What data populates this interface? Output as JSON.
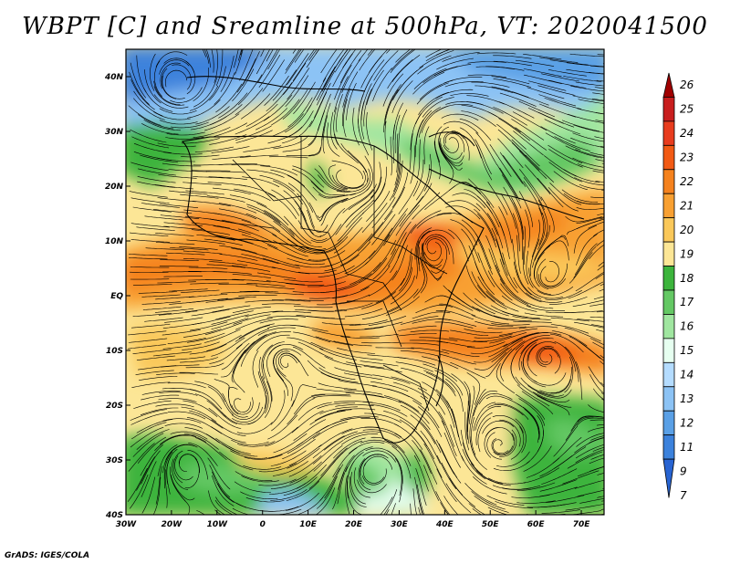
{
  "title": "WBPT [C] and Sreamline at 500hPa, VT: 2020041500",
  "credit": "GrADS: IGES/COLA",
  "map": {
    "lon_range": [
      -30,
      75
    ],
    "lat_range": [
      -40,
      45
    ],
    "lon_ticks": [
      "30W",
      "20W",
      "10W",
      "0",
      "10E",
      "20E",
      "30E",
      "40E",
      "50E",
      "60E",
      "70E"
    ],
    "lat_ticks": [
      "40N",
      "30N",
      "20N",
      "10N",
      "EQ",
      "10S",
      "20S",
      "30S",
      "40S"
    ]
  },
  "colorbar": {
    "levels": [
      "26",
      "25",
      "24",
      "23",
      "22",
      "21",
      "20",
      "19",
      "18",
      "17",
      "16",
      "15",
      "14",
      "13",
      "12",
      "11",
      "9",
      "7"
    ],
    "colors": [
      "#a00000",
      "#c81e1e",
      "#e83c1e",
      "#f25a14",
      "#f5821e",
      "#f8a032",
      "#fac85a",
      "#fce696",
      "#3cb43c",
      "#64c864",
      "#a0e6a0",
      "#e6fff0",
      "#b4dcff",
      "#8cc3f5",
      "#5aa0e6",
      "#3c82dc",
      "#2864d2"
    ]
  }
}
